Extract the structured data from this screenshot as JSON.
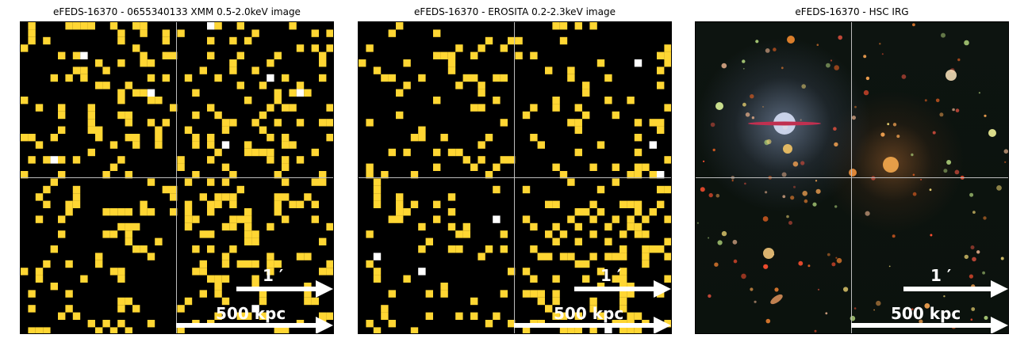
{
  "panels": [
    {
      "title": "eFEDS-16370 - 0655340133 XMM 0.5-2.0keV image",
      "scale_arcmin": "1 ′",
      "scale_distance": "500 kpc",
      "image_kind": "xray-counts"
    },
    {
      "title": "eFEDS-16370 -  EROSITA 0.2-2.3keV image",
      "scale_arcmin": "1 ′",
      "scale_distance": "500 kpc",
      "image_kind": "xray-counts"
    },
    {
      "title": "eFEDS-16370 - HSC IRG",
      "scale_arcmin": "1 ′",
      "scale_distance": "500 kpc",
      "image_kind": "optical-color"
    }
  ],
  "colors": {
    "count_pixel": "#ffd633",
    "count_pixel_bright": "#ffffff",
    "crosshair": "#bdbdbd",
    "arrow": "#ffffff",
    "background": "#000000"
  }
}
